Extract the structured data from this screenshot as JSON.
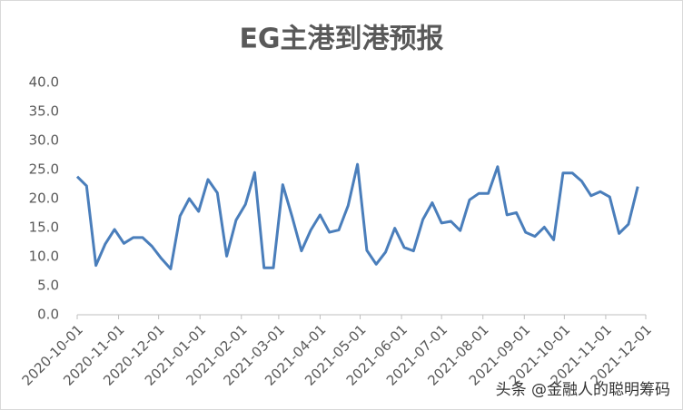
{
  "chart_data": {
    "type": "line",
    "title": "EG主港到港预报",
    "x": [
      "2020-10-01",
      "2020-10-08",
      "2020-10-15",
      "2020-10-22",
      "2020-10-29",
      "2020-11-05",
      "2020-11-12",
      "2020-11-19",
      "2020-11-26",
      "2020-12-03",
      "2020-12-10",
      "2020-12-17",
      "2020-12-24",
      "2020-12-31",
      "2021-01-07",
      "2021-01-14",
      "2021-01-21",
      "2021-01-28",
      "2021-02-04",
      "2021-02-11",
      "2021-02-18",
      "2021-02-25",
      "2021-03-04",
      "2021-03-11",
      "2021-03-18",
      "2021-03-25",
      "2021-04-01",
      "2021-04-08",
      "2021-04-15",
      "2021-04-22",
      "2021-04-29",
      "2021-05-06",
      "2021-05-13",
      "2021-05-20",
      "2021-05-27",
      "2021-06-03",
      "2021-06-10",
      "2021-06-17",
      "2021-06-24",
      "2021-07-01",
      "2021-07-08",
      "2021-07-15",
      "2021-07-22",
      "2021-07-29",
      "2021-08-05",
      "2021-08-12",
      "2021-08-19",
      "2021-08-26",
      "2021-09-02",
      "2021-09-09",
      "2021-09-16",
      "2021-09-23",
      "2021-09-30",
      "2021-10-07",
      "2021-10-14",
      "2021-10-21",
      "2021-10-28",
      "2021-11-04",
      "2021-11-11",
      "2021-11-18",
      "2021-11-25"
    ],
    "series": [
      {
        "name": "EG主港到港预报",
        "color": "#4a7ebb",
        "values": [
          23.8,
          22.2,
          8.5,
          12.2,
          14.7,
          12.3,
          13.3,
          13.3,
          11.8,
          9.7,
          7.9,
          17.0,
          20.0,
          17.8,
          23.3,
          21.0,
          10.1,
          16.3,
          19.0,
          24.5,
          8.1,
          8.1,
          22.4,
          16.9,
          11.0,
          14.6,
          17.2,
          14.2,
          14.6,
          18.8,
          25.9,
          11.1,
          8.7,
          10.8,
          14.9,
          11.6,
          11.0,
          16.4,
          19.3,
          15.8,
          16.1,
          14.5,
          19.8,
          20.9,
          20.9,
          25.5,
          17.2,
          17.6,
          14.2,
          13.5,
          15.1,
          12.9,
          24.4,
          24.4,
          23.0,
          20.5,
          21.2,
          20.3,
          14.0,
          15.6,
          22.1
        ]
      }
    ],
    "xlim": [
      "2020-10-01",
      "2021-12-01"
    ],
    "xticks": [
      "2020-10-01",
      "2020-11-01",
      "2020-12-01",
      "2021-01-01",
      "2021-02-01",
      "2021-03-01",
      "2021-04-01",
      "2021-05-01",
      "2021-06-01",
      "2021-07-01",
      "2021-08-01",
      "2021-09-01",
      "2021-10-01",
      "2021-11-01",
      "2021-12-01"
    ],
    "ylim": [
      0,
      40
    ],
    "yticks": [
      {
        "value": 0,
        "label": "0.0"
      },
      {
        "value": 5,
        "label": "5.0"
      },
      {
        "value": 10,
        "label": "10.0"
      },
      {
        "value": 15,
        "label": "15.0"
      },
      {
        "value": 20,
        "label": "20.0"
      },
      {
        "value": 25,
        "label": "25.0"
      },
      {
        "value": 30,
        "label": "30.0"
      },
      {
        "value": 35,
        "label": "35.0"
      },
      {
        "value": 40,
        "label": "40.0"
      }
    ],
    "grid": false,
    "watermark": "头条 @金融人的聪明筹码"
  }
}
